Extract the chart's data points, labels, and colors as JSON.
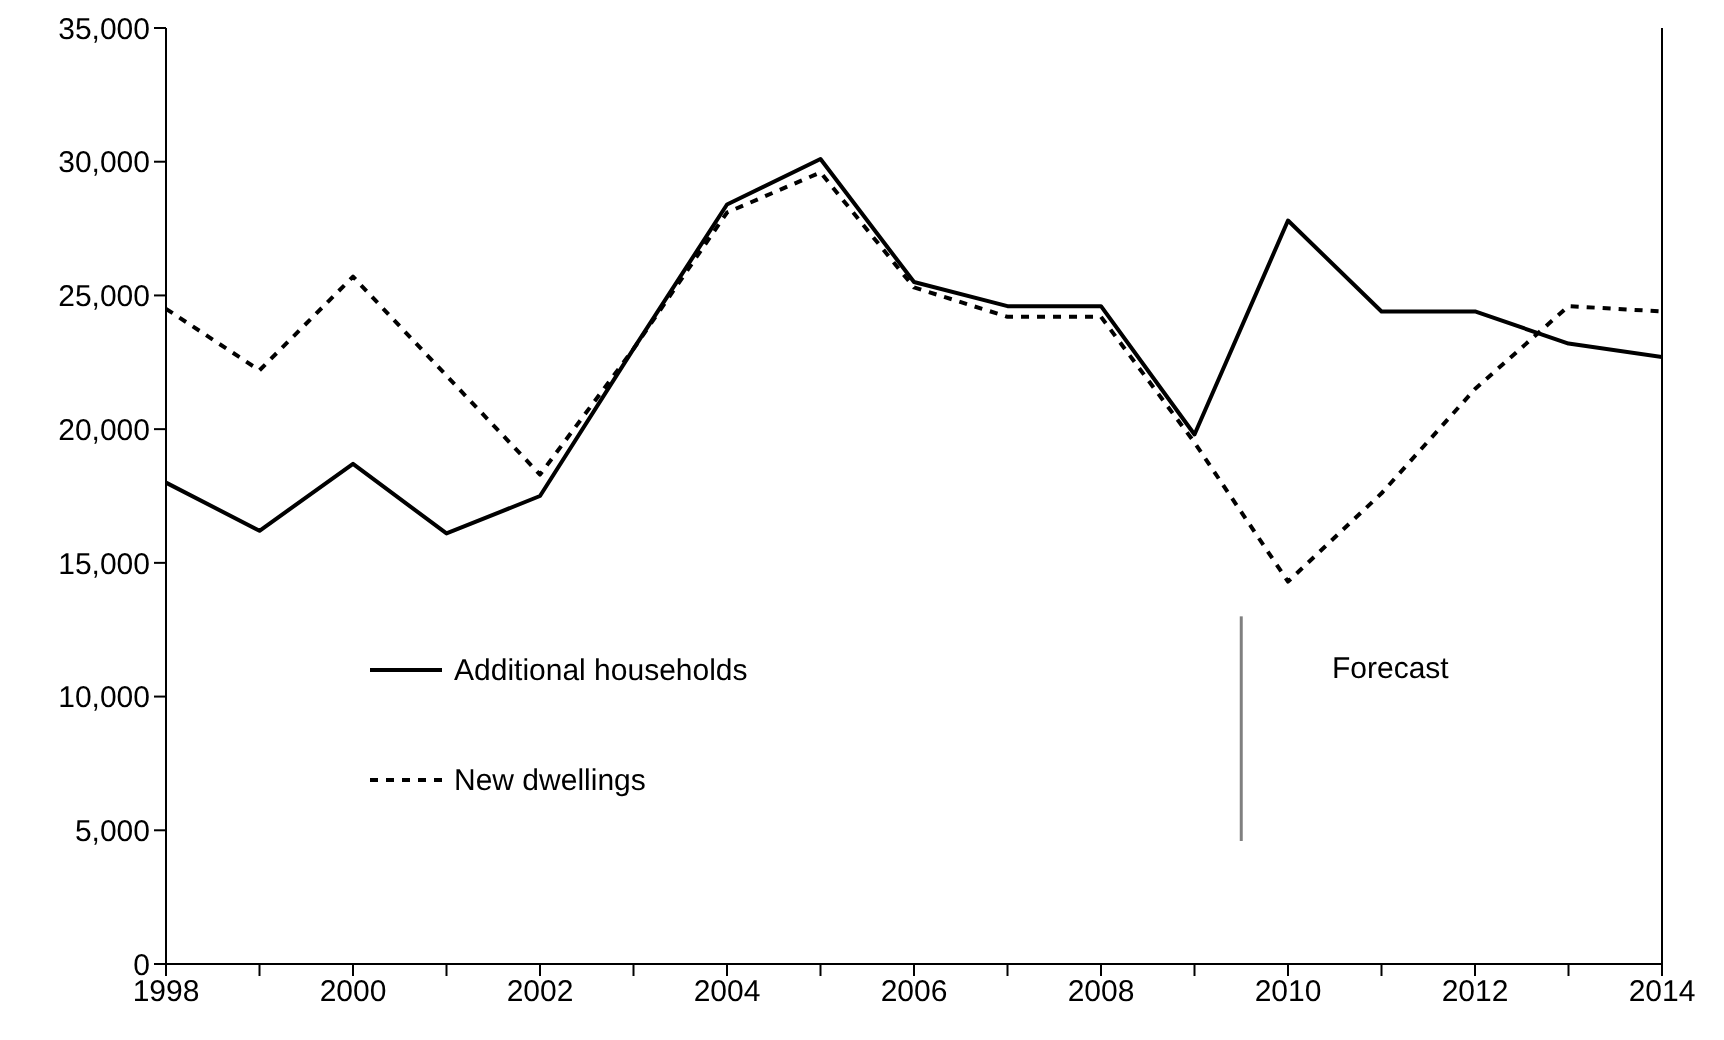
{
  "chart_data": {
    "type": "line",
    "x": [
      1998,
      1999,
      2000,
      2001,
      2002,
      2003,
      2004,
      2005,
      2006,
      2007,
      2008,
      2009,
      2010,
      2011,
      2012,
      2013,
      2014
    ],
    "series": [
      {
        "name": "Additional households",
        "color": "#000000",
        "line_style": "solid",
        "values": [
          18000,
          16200,
          18700,
          16100,
          17500,
          23000,
          28400,
          30100,
          25500,
          24600,
          24600,
          19800,
          27800,
          24400,
          24400,
          23200,
          22700
        ]
      },
      {
        "name": "New dwellings",
        "color": "#000000",
        "line_style": "dashed",
        "values": [
          24500,
          22200,
          25700,
          22000,
          18300,
          23000,
          28100,
          29600,
          25300,
          24200,
          24200,
          19500,
          14300,
          17600,
          21500,
          24600,
          24400
        ]
      }
    ],
    "xlim": [
      1998,
      2014
    ],
    "xticks": [
      1998,
      {
        "value": 1999,
        "label": null
      },
      2000,
      {
        "value": 2001,
        "label": null
      },
      2002,
      {
        "value": 2003,
        "label": null
      },
      2004,
      {
        "value": 2005,
        "label": null
      },
      2006,
      {
        "value": 2007,
        "label": null
      },
      2008,
      {
        "value": 2009,
        "label": null
      },
      2010,
      {
        "value": 2011,
        "label": null
      },
      2012,
      {
        "value": 2013,
        "label": null
      },
      2014
    ],
    "ylim": [
      0,
      35000
    ],
    "yticks": [
      {
        "value": 0,
        "label": "0"
      },
      {
        "value": 5000,
        "label": "5,000"
      },
      {
        "value": 10000,
        "label": "10,000"
      },
      {
        "value": 15000,
        "label": "15,000"
      },
      {
        "value": 20000,
        "label": "20,000"
      },
      {
        "value": 25000,
        "label": "25,000"
      },
      {
        "value": 30000,
        "label": "30,000"
      },
      {
        "value": 35000,
        "label": "35,000"
      }
    ],
    "ref_lines": [
      {
        "axis": "x",
        "value": 2009.5,
        "color": "#808080"
      }
    ],
    "annotations": [
      "Forecast"
    ],
    "legend": "left",
    "grid": false,
    "marker": "none"
  }
}
